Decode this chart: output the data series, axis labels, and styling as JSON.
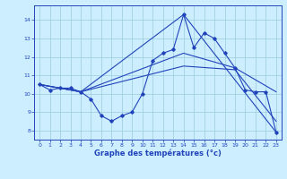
{
  "xlabel": "Graphe des températures (°c)",
  "xlim": [
    -0.5,
    23.5
  ],
  "ylim": [
    7.5,
    14.8
  ],
  "xticks": [
    0,
    1,
    2,
    3,
    4,
    5,
    6,
    7,
    8,
    9,
    10,
    11,
    12,
    13,
    14,
    15,
    16,
    17,
    18,
    19,
    20,
    21,
    22,
    23
  ],
  "yticks": [
    8,
    9,
    10,
    11,
    12,
    13,
    14
  ],
  "bg_color": "#cceeff",
  "line_color": "#2244bb",
  "grid_color": "#99ccdd",
  "line1": {
    "x": [
      0,
      1,
      2,
      3,
      4,
      5,
      6,
      7,
      8,
      9,
      10,
      11,
      12,
      13,
      14,
      15,
      16,
      17,
      18,
      19,
      20,
      21,
      22,
      23
    ],
    "y": [
      10.5,
      10.2,
      10.3,
      10.3,
      10.1,
      9.7,
      8.8,
      8.5,
      8.8,
      9.0,
      10.0,
      11.8,
      12.2,
      12.4,
      14.3,
      12.5,
      13.3,
      13.0,
      12.2,
      11.4,
      10.2,
      10.1,
      10.1,
      7.9
    ]
  },
  "line2_x": [
    0,
    4,
    14,
    23
  ],
  "line2_y": [
    10.5,
    10.1,
    14.3,
    7.9
  ],
  "line3_x": [
    0,
    4,
    14,
    19,
    23
  ],
  "line3_y": [
    10.5,
    10.1,
    12.2,
    11.4,
    10.1
  ],
  "line4_x": [
    0,
    4,
    14,
    19,
    23
  ],
  "line4_y": [
    10.5,
    10.1,
    11.5,
    11.3,
    8.5
  ]
}
